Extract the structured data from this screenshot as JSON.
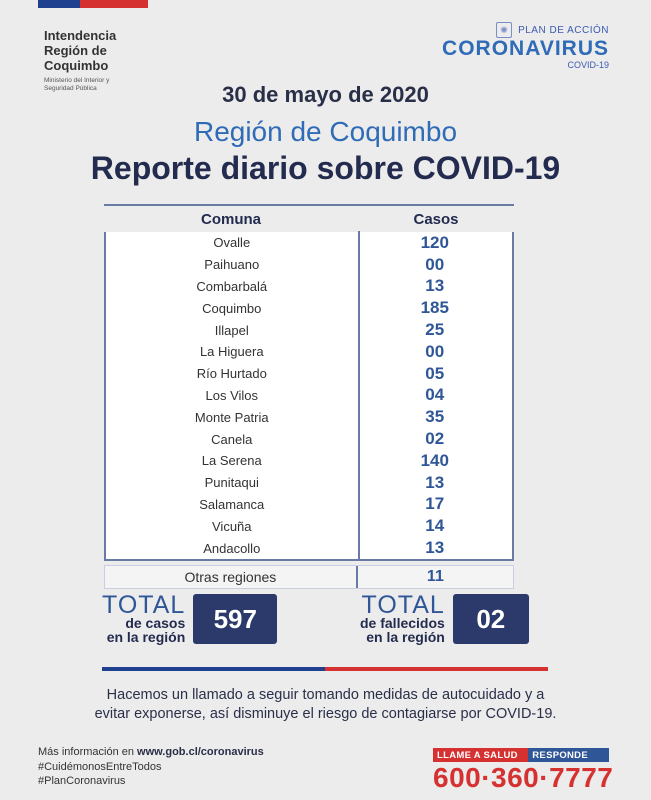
{
  "header": {
    "org_line1": "Intendencia",
    "org_line2": "Región de",
    "org_line3": "Coquimbo",
    "org_sub1": "Ministerio del Interior y",
    "org_sub2": "Seguridad Pública",
    "plan_label": "PLAN DE ACCIÓN",
    "plan_title": "CORONAVIRUS",
    "plan_sub": "COVID-19"
  },
  "title": {
    "date": "30 de mayo de 2020",
    "region": "Región de Coquimbo",
    "report": "Reporte diario sobre COVID-19"
  },
  "table": {
    "headers": [
      "Comuna",
      "Casos"
    ],
    "rows": [
      {
        "comuna": "Ovalle",
        "casos": "120"
      },
      {
        "comuna": "Paihuano",
        "casos": "00"
      },
      {
        "comuna": "Combarbalá",
        "casos": "13"
      },
      {
        "comuna": "Coquimbo",
        "casos": "185"
      },
      {
        "comuna": "Illapel",
        "casos": "25"
      },
      {
        "comuna": "La Higuera",
        "casos": "00"
      },
      {
        "comuna": "Río Hurtado",
        "casos": "05"
      },
      {
        "comuna": "Los Vilos",
        "casos": "04"
      },
      {
        "comuna": "Monte Patria",
        "casos": "35"
      },
      {
        "comuna": "Canela",
        "casos": "02"
      },
      {
        "comuna": "La Serena",
        "casos": "140"
      },
      {
        "comuna": "Punitaqui",
        "casos": "13"
      },
      {
        "comuna": "Salamanca",
        "casos": "17"
      },
      {
        "comuna": "Vicuña",
        "casos": "14"
      },
      {
        "comuna": "Andacollo",
        "casos": "13"
      }
    ],
    "otras": {
      "comuna": "Otras regiones",
      "casos": "11"
    }
  },
  "totals": {
    "casos": {
      "big": "TOTAL",
      "line1": "de casos",
      "line2": "en la región",
      "value": "597"
    },
    "fallecidos": {
      "big": "TOTAL",
      "line1": "de fallecidos",
      "line2": "en la región",
      "value": "02"
    }
  },
  "message": {
    "line1": "Hacemos un llamado a seguir tomando medidas de autocuidado y a",
    "line2": "evitar exponerse, así disminuye el riesgo de contagiarse por COVID-19."
  },
  "footer": {
    "info_prefix": "Más información en ",
    "info_url": "www.gob.cl/coronavirus",
    "hashtag1": "#CuidémonosEntreTodos",
    "hashtag2": "#PlanCoronavirus",
    "phone_label_a": "LLAME A SALUD",
    "phone_label_b": "RESPONDE",
    "phone_number": "600·360·7777"
  },
  "colors": {
    "navy": "#232b4e",
    "blue": "#2f6bb7",
    "box": "#2b3a6b",
    "red": "#d63131"
  }
}
